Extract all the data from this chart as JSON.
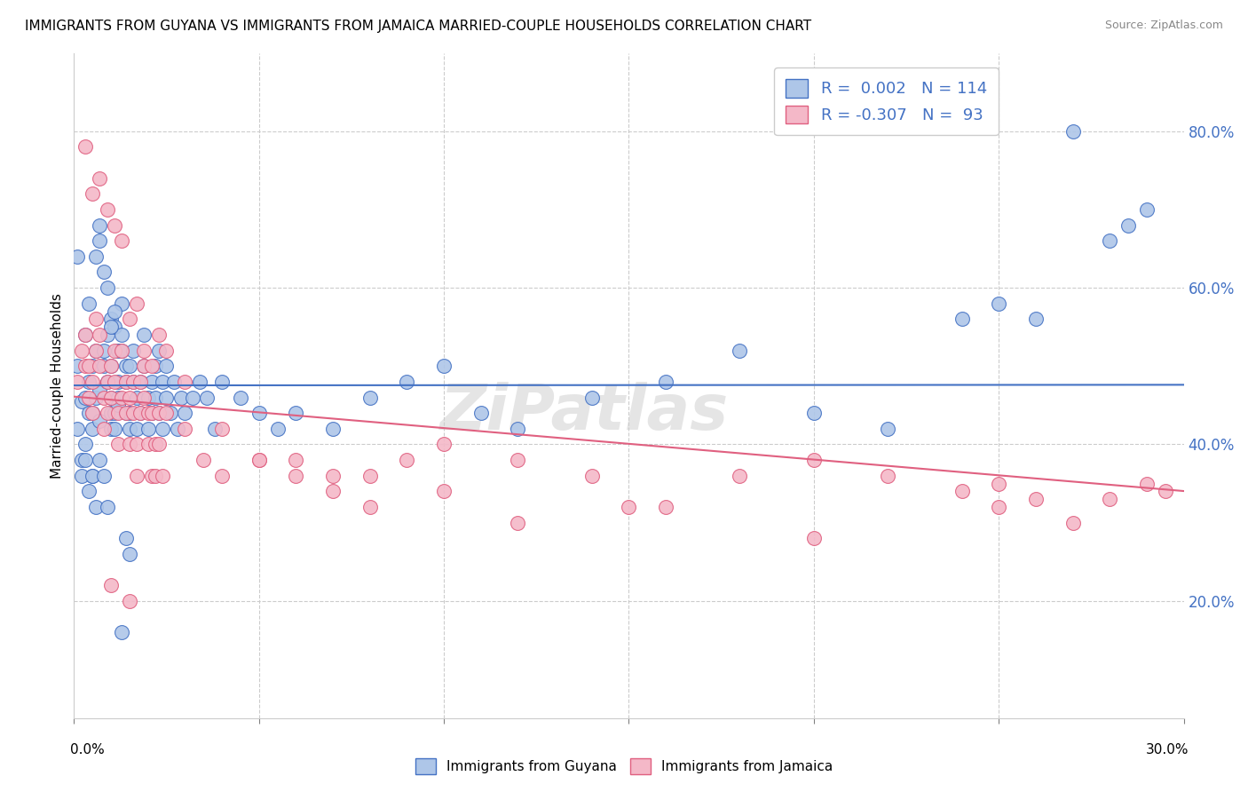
{
  "title": "IMMIGRANTS FROM GUYANA VS IMMIGRANTS FROM JAMAICA MARRIED-COUPLE HOUSEHOLDS CORRELATION CHART",
  "source": "Source: ZipAtlas.com",
  "ylabel": "Married-couple Households",
  "ytick_labels": [
    "20.0%",
    "40.0%",
    "60.0%",
    "80.0%"
  ],
  "ytick_values": [
    0.2,
    0.4,
    0.6,
    0.8
  ],
  "xlim": [
    0.0,
    0.3
  ],
  "ylim": [
    0.05,
    0.9
  ],
  "legend_label1": "Immigrants from Guyana",
  "legend_label2": "Immigrants from Jamaica",
  "r1": 0.002,
  "n1": 114,
  "r2": -0.307,
  "n2": 93,
  "color1_face": "#aec6e8",
  "color1_edge": "#4472c4",
  "color2_face": "#f4b8c8",
  "color2_edge": "#e06080",
  "line1_color": "#4472c4",
  "line2_color": "#e06080",
  "watermark": "ZiPatlas",
  "guyana_x": [
    0.001,
    0.001,
    0.002,
    0.002,
    0.003,
    0.003,
    0.003,
    0.004,
    0.004,
    0.004,
    0.005,
    0.005,
    0.005,
    0.005,
    0.006,
    0.006,
    0.006,
    0.007,
    0.007,
    0.007,
    0.007,
    0.008,
    0.008,
    0.008,
    0.009,
    0.009,
    0.009,
    0.01,
    0.01,
    0.01,
    0.01,
    0.01,
    0.011,
    0.011,
    0.011,
    0.012,
    0.012,
    0.012,
    0.013,
    0.013,
    0.013,
    0.014,
    0.014,
    0.014,
    0.015,
    0.015,
    0.015,
    0.016,
    0.016,
    0.017,
    0.017,
    0.018,
    0.018,
    0.019,
    0.019,
    0.02,
    0.02,
    0.021,
    0.021,
    0.022,
    0.022,
    0.023,
    0.023,
    0.024,
    0.024,
    0.025,
    0.025,
    0.026,
    0.027,
    0.028,
    0.029,
    0.03,
    0.032,
    0.034,
    0.036,
    0.038,
    0.04,
    0.045,
    0.05,
    0.055,
    0.06,
    0.07,
    0.08,
    0.09,
    0.1,
    0.11,
    0.12,
    0.14,
    0.16,
    0.18,
    0.2,
    0.22,
    0.24,
    0.25,
    0.26,
    0.27,
    0.28,
    0.285,
    0.29,
    0.001,
    0.002,
    0.003,
    0.004,
    0.005,
    0.006,
    0.007,
    0.008,
    0.009,
    0.01,
    0.011,
    0.012,
    0.013,
    0.014,
    0.015
  ],
  "guyana_y": [
    0.5,
    0.42,
    0.455,
    0.38,
    0.46,
    0.4,
    0.54,
    0.48,
    0.44,
    0.58,
    0.5,
    0.42,
    0.44,
    0.36,
    0.46,
    0.52,
    0.64,
    0.43,
    0.47,
    0.66,
    0.68,
    0.5,
    0.52,
    0.62,
    0.48,
    0.54,
    0.6,
    0.56,
    0.5,
    0.46,
    0.44,
    0.42,
    0.44,
    0.42,
    0.55,
    0.48,
    0.52,
    0.46,
    0.58,
    0.54,
    0.52,
    0.5,
    0.44,
    0.48,
    0.5,
    0.44,
    0.42,
    0.48,
    0.52,
    0.46,
    0.42,
    0.44,
    0.48,
    0.5,
    0.54,
    0.46,
    0.42,
    0.44,
    0.48,
    0.5,
    0.46,
    0.52,
    0.44,
    0.48,
    0.42,
    0.46,
    0.5,
    0.44,
    0.48,
    0.42,
    0.46,
    0.44,
    0.46,
    0.48,
    0.46,
    0.42,
    0.48,
    0.46,
    0.44,
    0.42,
    0.44,
    0.42,
    0.46,
    0.48,
    0.5,
    0.44,
    0.42,
    0.46,
    0.48,
    0.52,
    0.44,
    0.42,
    0.56,
    0.58,
    0.56,
    0.8,
    0.66,
    0.68,
    0.7,
    0.64,
    0.36,
    0.38,
    0.34,
    0.36,
    0.32,
    0.38,
    0.36,
    0.32,
    0.55,
    0.57,
    0.45,
    0.16,
    0.28,
    0.26
  ],
  "jamaica_x": [
    0.001,
    0.002,
    0.003,
    0.003,
    0.004,
    0.004,
    0.005,
    0.005,
    0.006,
    0.006,
    0.007,
    0.007,
    0.008,
    0.008,
    0.009,
    0.009,
    0.01,
    0.01,
    0.011,
    0.011,
    0.012,
    0.012,
    0.013,
    0.013,
    0.014,
    0.014,
    0.015,
    0.015,
    0.016,
    0.016,
    0.017,
    0.017,
    0.018,
    0.018,
    0.019,
    0.019,
    0.02,
    0.02,
    0.021,
    0.021,
    0.022,
    0.022,
    0.023,
    0.023,
    0.024,
    0.025,
    0.03,
    0.035,
    0.04,
    0.05,
    0.06,
    0.07,
    0.08,
    0.09,
    0.1,
    0.12,
    0.14,
    0.16,
    0.18,
    0.2,
    0.22,
    0.24,
    0.25,
    0.26,
    0.003,
    0.005,
    0.007,
    0.009,
    0.011,
    0.013,
    0.015,
    0.017,
    0.019,
    0.021,
    0.023,
    0.025,
    0.03,
    0.04,
    0.05,
    0.06,
    0.07,
    0.08,
    0.1,
    0.12,
    0.15,
    0.2,
    0.25,
    0.27,
    0.28,
    0.29,
    0.295,
    0.01,
    0.015
  ],
  "jamaica_y": [
    0.48,
    0.52,
    0.5,
    0.54,
    0.46,
    0.5,
    0.44,
    0.48,
    0.52,
    0.56,
    0.54,
    0.5,
    0.46,
    0.42,
    0.44,
    0.48,
    0.5,
    0.46,
    0.52,
    0.48,
    0.44,
    0.4,
    0.46,
    0.52,
    0.48,
    0.44,
    0.4,
    0.46,
    0.48,
    0.44,
    0.4,
    0.36,
    0.44,
    0.48,
    0.5,
    0.46,
    0.44,
    0.4,
    0.36,
    0.44,
    0.4,
    0.36,
    0.44,
    0.4,
    0.36,
    0.44,
    0.42,
    0.38,
    0.36,
    0.38,
    0.36,
    0.34,
    0.36,
    0.38,
    0.4,
    0.38,
    0.36,
    0.32,
    0.36,
    0.38,
    0.36,
    0.34,
    0.35,
    0.33,
    0.78,
    0.72,
    0.74,
    0.7,
    0.68,
    0.66,
    0.56,
    0.58,
    0.52,
    0.5,
    0.54,
    0.52,
    0.48,
    0.42,
    0.38,
    0.38,
    0.36,
    0.32,
    0.34,
    0.3,
    0.32,
    0.28,
    0.32,
    0.3,
    0.33,
    0.35,
    0.34,
    0.22,
    0.2
  ]
}
